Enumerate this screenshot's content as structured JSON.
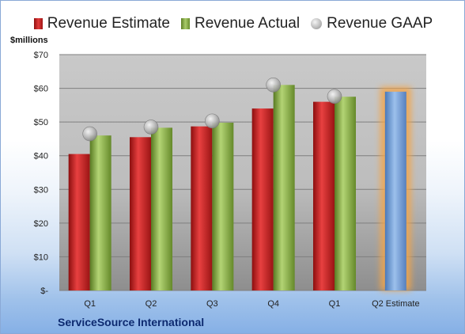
{
  "legend": {
    "estimate": "Revenue Estimate",
    "actual": "Revenue Actual",
    "gaap": "Revenue GAAP"
  },
  "footer": "ServiceSource International",
  "chart_data": {
    "type": "bar",
    "ylabel": "$millions",
    "ylim": [
      0,
      70
    ],
    "yticks": [
      0,
      10,
      20,
      30,
      40,
      50,
      60,
      70
    ],
    "ytick_labels": [
      "$-",
      "$10",
      "$20",
      "$30",
      "$40",
      "$50",
      "$60",
      "$70"
    ],
    "categories": [
      "Q1",
      "Q2",
      "Q3",
      "Q4",
      "Q1",
      "Q2 Estimate"
    ],
    "series": [
      {
        "name": "Revenue Estimate",
        "kind": "bar",
        "color": "#c42a2a",
        "values": [
          40.5,
          45.5,
          48.7,
          54.0,
          56.0,
          null
        ]
      },
      {
        "name": "Revenue Actual",
        "kind": "bar",
        "color": "#8fb04a",
        "values": [
          46.0,
          48.3,
          49.8,
          61.0,
          57.5,
          null
        ]
      },
      {
        "name": "Revenue GAAP",
        "kind": "marker",
        "color": "#a8a8a8",
        "values": [
          46.5,
          48.5,
          50.3,
          61.0,
          57.6,
          null
        ]
      }
    ],
    "estimate_bar": {
      "category": "Q2 Estimate",
      "value": 59.0,
      "color": "#6d97cf",
      "glow": "#f3a54a"
    },
    "grid": true,
    "legend_position": "top"
  }
}
